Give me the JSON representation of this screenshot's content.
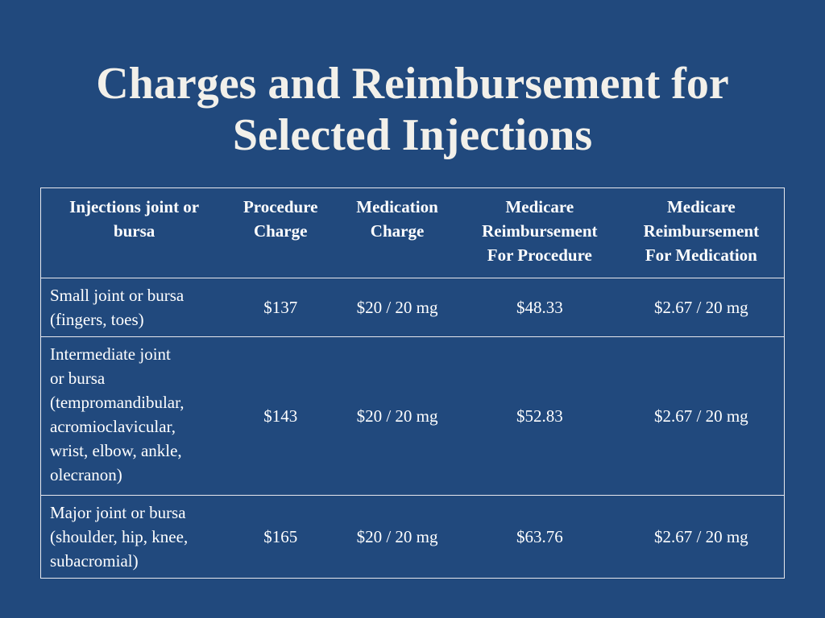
{
  "slide": {
    "title_line1": "Charges and Reimbursement for",
    "title_line2": "Selected Injections"
  },
  "table": {
    "headers": [
      "Injections joint or\nbursa",
      "Procedure\nCharge",
      "Medication\nCharge",
      "Medicare\nReimbursement\nFor Procedure",
      "Medicare\nReimbursement\nFor Medication"
    ],
    "rows": [
      {
        "injection": "Small joint or bursa\n(fingers, toes)",
        "procedure_charge": "$137",
        "medication_charge": "$20 / 20 mg",
        "medicare_procedure": "$48.33",
        "medicare_medication": "$2.67 / 20 mg"
      },
      {
        "injection": "Intermediate joint\nor bursa\n(tempromandibular,\nacromioclavicular,\nwrist, elbow, ankle,\nolecranon)",
        "procedure_charge": "$143",
        "medication_charge": "$20 / 20 mg",
        "medicare_procedure": "$52.83",
        "medicare_medication": "$2.67 / 20 mg"
      },
      {
        "injection": "Major joint or bursa\n(shoulder, hip, knee,\nsubacromial)",
        "procedure_charge": "$165",
        "medication_charge": "$20 / 20 mg",
        "medicare_procedure": "$63.76",
        "medicare_medication": "$2.67 / 20 mg"
      }
    ]
  },
  "colors": {
    "background": "#21497d",
    "title_text": "#f2f0ea",
    "table_border": "#e8e8ee",
    "table_text": "#ffffff"
  }
}
